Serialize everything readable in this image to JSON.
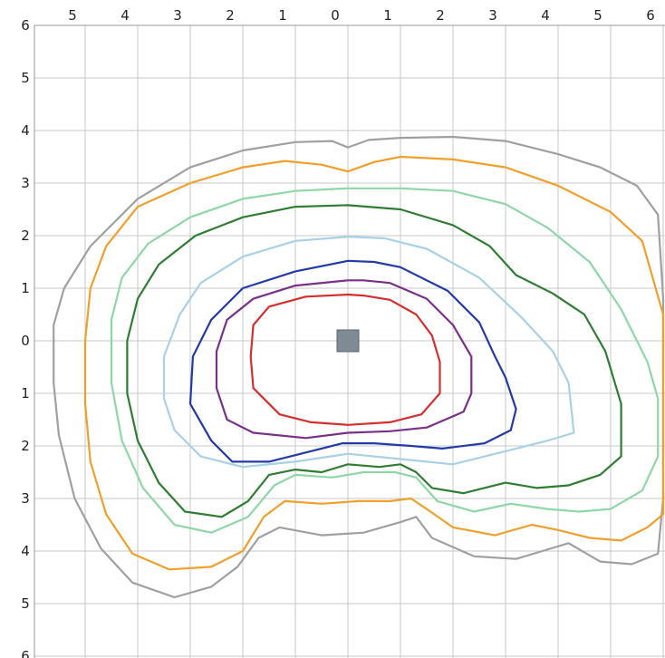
{
  "chart_data": {
    "type": "line",
    "title": "",
    "xlabel": "",
    "ylabel": "",
    "xlim": [
      -6,
      6
    ],
    "ylim": [
      -6,
      6
    ],
    "grid": true,
    "x_tick_labels": [
      "5",
      "4",
      "3",
      "2",
      "1",
      "0",
      "1",
      "2",
      "3",
      "4",
      "5",
      "6"
    ],
    "x_tick_values": [
      -5,
      -4,
      -3,
      -2,
      -1,
      0,
      1,
      2,
      3,
      4,
      5,
      6
    ],
    "y_tick_labels": [
      "6",
      "5",
      "4",
      "3",
      "2",
      "1",
      "0",
      "1",
      "2",
      "3",
      "4",
      "5",
      "6"
    ],
    "y_tick_values": [
      6,
      5,
      4,
      3,
      2,
      1,
      0,
      -1,
      -2,
      -3,
      -4,
      -5,
      -6
    ],
    "source_marker": {
      "x": 0,
      "y": 0,
      "shape": "square",
      "color": "#7f8a94"
    },
    "series": [
      {
        "color": "#a0a0a0",
        "closed": true,
        "points": [
          [
            0,
            3.68
          ],
          [
            -0.3,
            3.8
          ],
          [
            -1,
            3.78
          ],
          [
            -2,
            3.62
          ],
          [
            -3,
            3.3
          ],
          [
            -4,
            2.7
          ],
          [
            -4.9,
            1.8
          ],
          [
            -5.4,
            1.0
          ],
          [
            -5.6,
            0.3
          ],
          [
            -5.6,
            -0.8
          ],
          [
            -5.5,
            -1.8
          ],
          [
            -5.2,
            -3.0
          ],
          [
            -4.7,
            -3.95
          ],
          [
            -4.1,
            -4.6
          ],
          [
            -3.3,
            -4.88
          ],
          [
            -2.6,
            -4.68
          ],
          [
            -2.1,
            -4.3
          ],
          [
            -1.7,
            -3.75
          ],
          [
            -1.3,
            -3.55
          ],
          [
            -0.5,
            -3.7
          ],
          [
            0.3,
            -3.65
          ],
          [
            1.0,
            -3.45
          ],
          [
            1.3,
            -3.35
          ],
          [
            1.6,
            -3.75
          ],
          [
            2.4,
            -4.1
          ],
          [
            3.2,
            -4.15
          ],
          [
            3.7,
            -4.0
          ],
          [
            4.2,
            -3.85
          ],
          [
            4.8,
            -4.2
          ],
          [
            5.4,
            -4.25
          ],
          [
            5.9,
            -4.05
          ],
          [
            6.0,
            -3.0
          ],
          [
            6.0,
            0.8
          ],
          [
            5.9,
            2.4
          ],
          [
            5.5,
            2.95
          ],
          [
            4.8,
            3.3
          ],
          [
            4.0,
            3.55
          ],
          [
            3.0,
            3.8
          ],
          [
            2.0,
            3.88
          ],
          [
            1.0,
            3.86
          ],
          [
            0.4,
            3.82
          ]
        ]
      },
      {
        "color": "#f0a02a",
        "closed": true,
        "points": [
          [
            0,
            3.22
          ],
          [
            -0.5,
            3.35
          ],
          [
            -1.2,
            3.42
          ],
          [
            -2,
            3.3
          ],
          [
            -3,
            3.0
          ],
          [
            -4,
            2.55
          ],
          [
            -4.6,
            1.8
          ],
          [
            -4.9,
            1.0
          ],
          [
            -5.0,
            0.0
          ],
          [
            -5.0,
            -1.2
          ],
          [
            -4.9,
            -2.3
          ],
          [
            -4.6,
            -3.3
          ],
          [
            -4.1,
            -4.05
          ],
          [
            -3.4,
            -4.35
          ],
          [
            -2.6,
            -4.3
          ],
          [
            -2.0,
            -4.0
          ],
          [
            -1.6,
            -3.35
          ],
          [
            -1.2,
            -3.05
          ],
          [
            -0.5,
            -3.1
          ],
          [
            0.2,
            -3.05
          ],
          [
            0.8,
            -3.05
          ],
          [
            1.2,
            -3.0
          ],
          [
            1.5,
            -3.2
          ],
          [
            2.0,
            -3.55
          ],
          [
            2.8,
            -3.7
          ],
          [
            3.5,
            -3.5
          ],
          [
            4.0,
            -3.6
          ],
          [
            4.6,
            -3.75
          ],
          [
            5.2,
            -3.8
          ],
          [
            5.7,
            -3.55
          ],
          [
            6.0,
            -3.3
          ],
          [
            6.0,
            0.5
          ],
          [
            5.6,
            1.9
          ],
          [
            5.0,
            2.45
          ],
          [
            4.0,
            2.95
          ],
          [
            3.0,
            3.3
          ],
          [
            2.0,
            3.45
          ],
          [
            1.0,
            3.5
          ],
          [
            0.5,
            3.4
          ]
        ]
      },
      {
        "color": "#8fd6a8",
        "closed": true,
        "points": [
          [
            0,
            2.9
          ],
          [
            -1,
            2.85
          ],
          [
            -2,
            2.7
          ],
          [
            -3,
            2.35
          ],
          [
            -3.8,
            1.85
          ],
          [
            -4.3,
            1.2
          ],
          [
            -4.5,
            0.4
          ],
          [
            -4.5,
            -0.8
          ],
          [
            -4.3,
            -1.9
          ],
          [
            -3.9,
            -2.8
          ],
          [
            -3.3,
            -3.5
          ],
          [
            -2.6,
            -3.65
          ],
          [
            -1.9,
            -3.35
          ],
          [
            -1.4,
            -2.75
          ],
          [
            -1.0,
            -2.55
          ],
          [
            -0.3,
            -2.6
          ],
          [
            0.3,
            -2.5
          ],
          [
            0.9,
            -2.5
          ],
          [
            1.3,
            -2.6
          ],
          [
            1.7,
            -3.05
          ],
          [
            2.4,
            -3.25
          ],
          [
            3.1,
            -3.1
          ],
          [
            3.8,
            -3.2
          ],
          [
            4.4,
            -3.25
          ],
          [
            5.0,
            -3.2
          ],
          [
            5.6,
            -2.85
          ],
          [
            5.9,
            -2.2
          ],
          [
            5.9,
            -1.1
          ],
          [
            5.7,
            -0.4
          ],
          [
            5.2,
            0.6
          ],
          [
            4.6,
            1.5
          ],
          [
            3.8,
            2.15
          ],
          [
            3.0,
            2.6
          ],
          [
            2.0,
            2.85
          ],
          [
            1.0,
            2.9
          ]
        ]
      },
      {
        "color": "#2e7d32",
        "closed": true,
        "points": [
          [
            0,
            2.58
          ],
          [
            -1,
            2.55
          ],
          [
            -2,
            2.35
          ],
          [
            -2.9,
            2.0
          ],
          [
            -3.6,
            1.45
          ],
          [
            -4.0,
            0.8
          ],
          [
            -4.2,
            0.0
          ],
          [
            -4.2,
            -1.0
          ],
          [
            -4.0,
            -1.9
          ],
          [
            -3.6,
            -2.7
          ],
          [
            -3.1,
            -3.25
          ],
          [
            -2.4,
            -3.35
          ],
          [
            -1.9,
            -3.05
          ],
          [
            -1.5,
            -2.55
          ],
          [
            -1.0,
            -2.45
          ],
          [
            -0.5,
            -2.5
          ],
          [
            0,
            -2.35
          ],
          [
            0.6,
            -2.4
          ],
          [
            1.0,
            -2.35
          ],
          [
            1.3,
            -2.5
          ],
          [
            1.6,
            -2.8
          ],
          [
            2.2,
            -2.9
          ],
          [
            3.0,
            -2.7
          ],
          [
            3.6,
            -2.8
          ],
          [
            4.2,
            -2.75
          ],
          [
            4.8,
            -2.55
          ],
          [
            5.2,
            -2.2
          ],
          [
            5.2,
            -1.2
          ],
          [
            4.9,
            -0.2
          ],
          [
            4.5,
            0.5
          ],
          [
            3.9,
            0.9
          ],
          [
            3.2,
            1.25
          ],
          [
            2.7,
            1.8
          ],
          [
            2.0,
            2.2
          ],
          [
            1.0,
            2.5
          ]
        ]
      },
      {
        "color": "#a8d0e6",
        "closed": true,
        "points": [
          [
            0,
            1.98
          ],
          [
            -1,
            1.9
          ],
          [
            -2,
            1.6
          ],
          [
            -2.8,
            1.1
          ],
          [
            -3.2,
            0.5
          ],
          [
            -3.5,
            -0.3
          ],
          [
            -3.5,
            -1.1
          ],
          [
            -3.3,
            -1.7
          ],
          [
            -2.8,
            -2.2
          ],
          [
            -2.0,
            -2.4
          ],
          [
            -1.0,
            -2.3
          ],
          [
            0,
            -2.15
          ],
          [
            1.0,
            -2.25
          ],
          [
            2.0,
            -2.35
          ],
          [
            3.0,
            -2.1
          ],
          [
            3.8,
            -1.9
          ],
          [
            4.3,
            -1.75
          ],
          [
            4.2,
            -0.8
          ],
          [
            3.9,
            -0.2
          ],
          [
            3.3,
            0.45
          ],
          [
            2.5,
            1.2
          ],
          [
            1.5,
            1.75
          ],
          [
            0.7,
            1.95
          ]
        ]
      },
      {
        "color": "#2339a8",
        "closed": true,
        "points": [
          [
            0,
            1.52
          ],
          [
            -1,
            1.32
          ],
          [
            -2,
            1.0
          ],
          [
            -2.6,
            0.4
          ],
          [
            -2.95,
            -0.3
          ],
          [
            -3.0,
            -1.2
          ],
          [
            -2.6,
            -1.9
          ],
          [
            -2.2,
            -2.3
          ],
          [
            -1.5,
            -2.3
          ],
          [
            -0.7,
            -2.1
          ],
          [
            -0.1,
            -1.95
          ],
          [
            0.5,
            -1.95
          ],
          [
            1.2,
            -2.0
          ],
          [
            1.8,
            -2.05
          ],
          [
            2.6,
            -1.95
          ],
          [
            3.1,
            -1.7
          ],
          [
            3.2,
            -1.3
          ],
          [
            3.0,
            -0.7
          ],
          [
            2.8,
            -0.3
          ],
          [
            2.5,
            0.35
          ],
          [
            1.9,
            0.95
          ],
          [
            1.0,
            1.4
          ],
          [
            0.5,
            1.5
          ]
        ]
      },
      {
        "color": "#7a2f8a",
        "closed": true,
        "points": [
          [
            0,
            1.15
          ],
          [
            -1,
            1.05
          ],
          [
            -1.8,
            0.8
          ],
          [
            -2.3,
            0.4
          ],
          [
            -2.5,
            -0.2
          ],
          [
            -2.5,
            -0.9
          ],
          [
            -2.3,
            -1.5
          ],
          [
            -1.8,
            -1.75
          ],
          [
            -0.8,
            -1.85
          ],
          [
            0,
            -1.75
          ],
          [
            0.8,
            -1.72
          ],
          [
            1.5,
            -1.65
          ],
          [
            2.2,
            -1.35
          ],
          [
            2.35,
            -1.0
          ],
          [
            2.35,
            -0.3
          ],
          [
            2.0,
            0.3
          ],
          [
            1.5,
            0.8
          ],
          [
            0.8,
            1.1
          ],
          [
            0.3,
            1.15
          ]
        ]
      },
      {
        "color": "#d32f2f",
        "closed": true,
        "points": [
          [
            0,
            0.88
          ],
          [
            -0.8,
            0.84
          ],
          [
            -1.5,
            0.65
          ],
          [
            -1.8,
            0.3
          ],
          [
            -1.85,
            -0.3
          ],
          [
            -1.8,
            -0.9
          ],
          [
            -1.3,
            -1.4
          ],
          [
            -0.7,
            -1.55
          ],
          [
            0,
            -1.6
          ],
          [
            0.8,
            -1.55
          ],
          [
            1.4,
            -1.4
          ],
          [
            1.75,
            -1.0
          ],
          [
            1.75,
            -0.4
          ],
          [
            1.6,
            0.1
          ],
          [
            1.3,
            0.5
          ],
          [
            0.8,
            0.78
          ],
          [
            0.3,
            0.86
          ]
        ]
      }
    ]
  }
}
